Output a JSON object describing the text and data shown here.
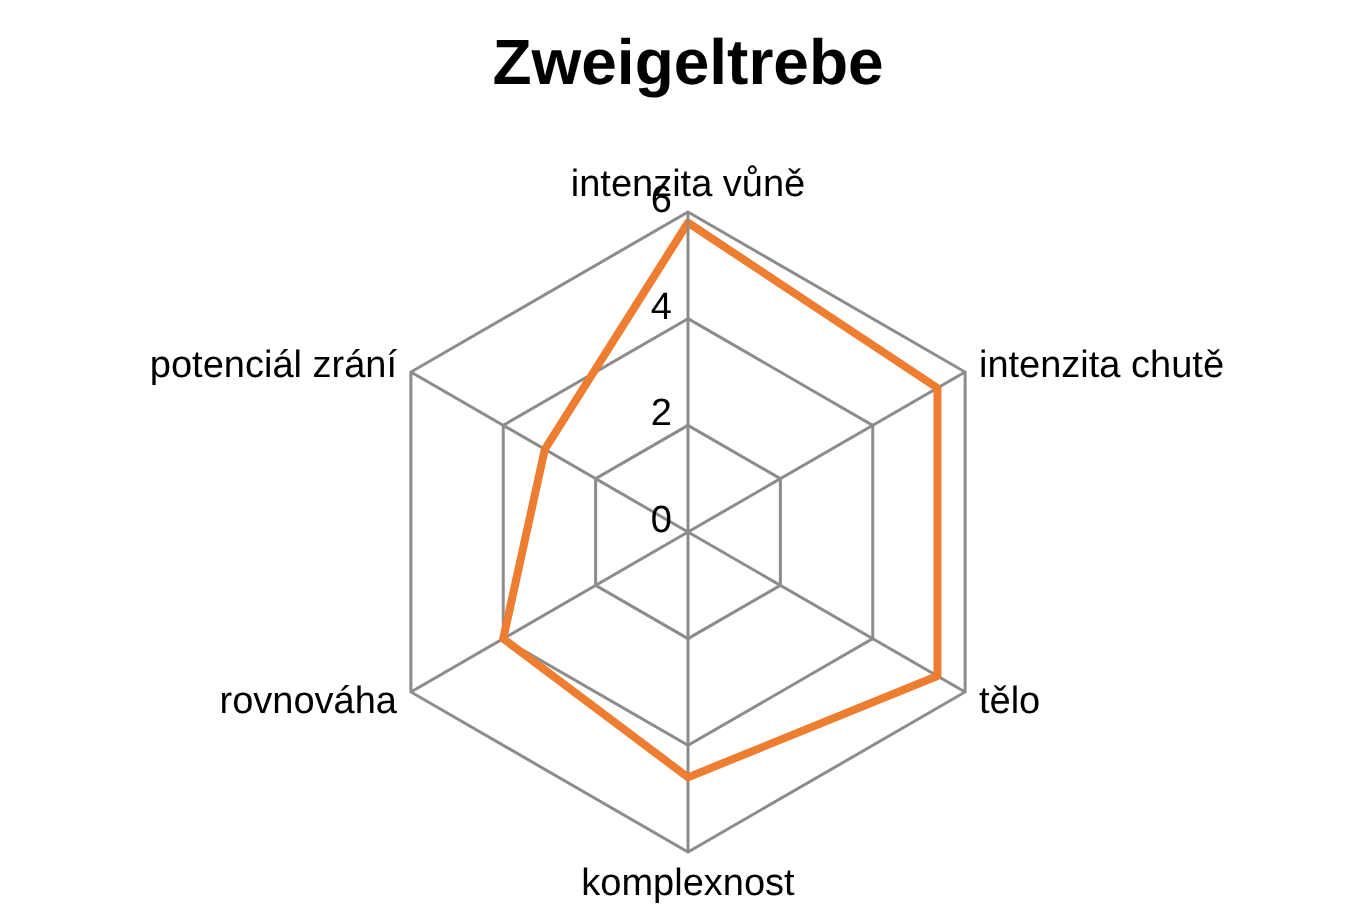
{
  "chart_data": {
    "type": "radar",
    "title": "Zweigeltrebe",
    "categories": [
      "intenzita vůně",
      "intenzita chutě",
      "tělo",
      "komplexnost",
      "rovnováha",
      "potenciál zrání"
    ],
    "series": [
      {
        "color": "#ed7d31",
        "values": [
          5.8,
          5.4,
          5.4,
          4.6,
          4.0,
          3.1
        ]
      }
    ],
    "ylim": [
      0,
      6
    ],
    "yticks": [
      0,
      2,
      4,
      6
    ],
    "grid": true,
    "marker": "none"
  }
}
